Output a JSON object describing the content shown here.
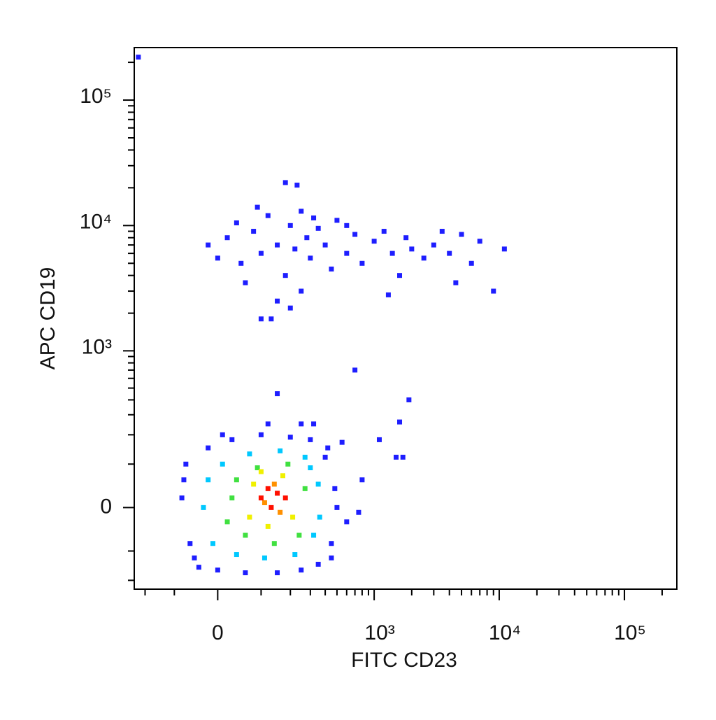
{
  "chart_data": {
    "type": "density-scatter",
    "xlabel": "FITC CD23",
    "ylabel": "APC CD19",
    "xscale": "biexponential",
    "yscale": "biexponential",
    "xlim": [
      -250,
      262144
    ],
    "ylim": [
      -240,
      262144
    ],
    "xticks": [
      0,
      {
        "value": 1000,
        "label": "10³"
      },
      {
        "value": 10000,
        "label": "10⁴"
      },
      {
        "value": 100000,
        "label": "10⁵"
      }
    ],
    "yticks": [
      0,
      {
        "value": 1000,
        "label": "10³"
      },
      {
        "value": 10000,
        "label": "10⁴"
      },
      {
        "value": 100000,
        "label": "10⁵"
      }
    ],
    "xminorticks": [
      -200,
      -100,
      100,
      200,
      300,
      400,
      500,
      600,
      700,
      800,
      900,
      2000,
      3000,
      4000,
      5000,
      6000,
      7000,
      8000,
      9000,
      20000,
      30000,
      40000,
      50000,
      60000,
      70000,
      80000,
      90000,
      200000
    ],
    "yminorticks": [
      -200,
      -100,
      100,
      200,
      300,
      400,
      500,
      600,
      700,
      800,
      900,
      2000,
      3000,
      4000,
      5000,
      6000,
      7000,
      8000,
      9000,
      20000,
      30000,
      40000,
      50000,
      60000,
      70000,
      80000,
      90000,
      200000
    ],
    "series": [
      {
        "color": "#1e1eff",
        "x": [
          20,
          50,
          80,
          100,
          120,
          150,
          180,
          200,
          220,
          250,
          280,
          300,
          350,
          400,
          450,
          500,
          600,
          700,
          800,
          1000,
          1200,
          1400,
          1600,
          1800,
          2000,
          2500,
          3000,
          3500,
          4000,
          5000,
          6000,
          7000,
          11000,
          9000,
          4500,
          150,
          100,
          130,
          200,
          60,
          250,
          180,
          230,
          90,
          1300,
          -20,
          0,
          40,
          320,
          600,
          -230,
          700,
          150,
          1900,
          1600,
          1100,
          1500,
          1700,
          800,
          750,
          -80,
          -60,
          -70,
          -40,
          -20,
          0,
          30,
          60,
          100,
          150,
          200,
          250,
          300,
          350,
          400,
          450,
          480,
          500,
          420,
          -50,
          -75,
          10,
          120,
          250,
          320,
          550,
          600,
          450
        ],
        "y": [
          8000,
          5000,
          9000,
          6000,
          12000,
          7000,
          4000,
          10000,
          6500,
          3000,
          8000,
          5500,
          9500,
          7000,
          4500,
          11000,
          6000,
          8500,
          5000,
          7500,
          9000,
          6000,
          4000,
          8000,
          6500,
          5500,
          7000,
          9000,
          6000,
          8500,
          5000,
          7500,
          6500,
          3000,
          3500,
          2500,
          1800,
          1800,
          2200,
          3500,
          13000,
          22000,
          21000,
          14000,
          2800,
          7000,
          5500,
          10500,
          11500,
          10000,
          220000,
          700,
          450,
          400,
          260,
          180,
          120,
          120,
          60,
          -10,
          20,
          -80,
          100,
          -150,
          150,
          -160,
          180,
          -170,
          200,
          -170,
          190,
          -160,
          180,
          -140,
          120,
          -80,
          40,
          0,
          150,
          -120,
          60,
          200,
          250,
          250,
          250,
          170,
          -30,
          -120
        ]
      },
      {
        "color": "#00c8ff",
        "x": [
          -30,
          -10,
          10,
          40,
          70,
          110,
          160,
          220,
          270,
          320,
          350,
          300,
          -20,
          360
        ],
        "y": [
          0,
          -80,
          100,
          -110,
          130,
          -120,
          140,
          -110,
          120,
          -60,
          50,
          90,
          60,
          -20
        ]
      },
      {
        "color": "#40e040",
        "x": [
          20,
          40,
          60,
          90,
          140,
          190,
          240,
          270,
          30
        ],
        "y": [
          -30,
          60,
          -60,
          90,
          -80,
          100,
          -60,
          40,
          20
        ]
      },
      {
        "color": "#f0f000",
        "x": [
          70,
          80,
          120,
          170,
          210,
          100
        ],
        "y": [
          -20,
          50,
          -40,
          70,
          -20,
          80
        ]
      },
      {
        "color": "#ff9000",
        "x": [
          110,
          160,
          140
        ],
        "y": [
          10,
          -10,
          50
        ]
      },
      {
        "color": "#ff1000",
        "x": [
          100,
          130,
          150,
          180,
          120
        ],
        "y": [
          20,
          0,
          30,
          20,
          40
        ]
      }
    ]
  }
}
